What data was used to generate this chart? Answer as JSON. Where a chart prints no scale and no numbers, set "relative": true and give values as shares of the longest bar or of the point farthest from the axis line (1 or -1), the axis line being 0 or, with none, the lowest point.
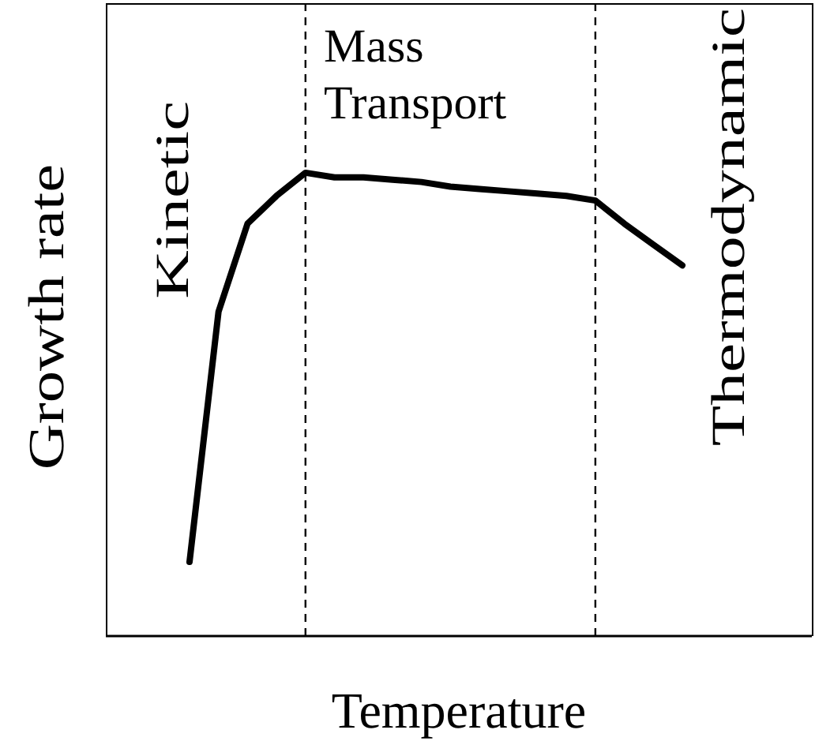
{
  "chart_data": {
    "type": "line",
    "relative": true,
    "xlabel": "Temperature",
    "ylabel": "Growth rate",
    "categories": [
      null,
      null,
      null,
      null,
      null,
      null,
      null,
      null,
      null,
      null,
      null,
      null,
      null,
      null,
      null,
      null,
      null,
      null
    ],
    "series": [
      {
        "color": "#000000",
        "values": [
          0.16,
          0.7,
          0.89,
          0.95,
          1,
          0.99,
          0.99,
          0.985,
          0.98,
          0.97,
          0.965,
          0.96,
          0.955,
          0.95,
          0.94,
          0.89,
          0.845,
          0.8
        ]
      }
    ],
    "marker": "none",
    "line_style": "solid",
    "annotations": [
      "Kinetic",
      "Mass\nTransport",
      "Thermodynamic"
    ]
  }
}
